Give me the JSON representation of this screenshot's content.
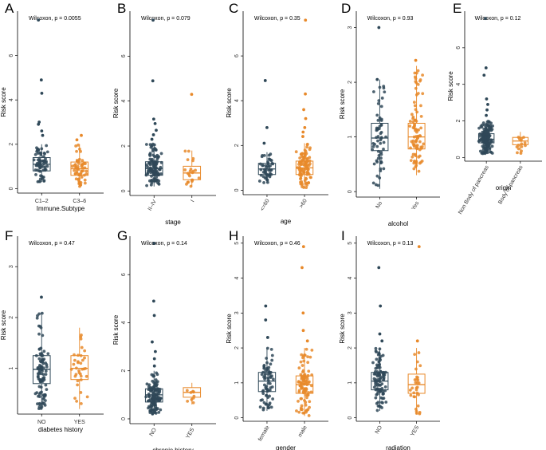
{
  "figure": {
    "description_title": ""
  },
  "colors": {
    "group1": "#2f4858",
    "group2": "#e8892a",
    "axis": "#000000"
  },
  "chart_data": [
    {
      "type": "box",
      "letter": "A",
      "test": "Wilcoxon, p = 0.0055",
      "xlabel": "Immune.Subtype",
      "ylabel": "Risk score",
      "categories": [
        "C1–2",
        "C3–6"
      ],
      "ylim": [
        -0.2,
        8.0
      ],
      "yticks": [
        0,
        2,
        4,
        6
      ],
      "rotate": false,
      "series": [
        {
          "name": "C1–2",
          "q1": 0.8,
          "median": 1.1,
          "q3": 1.4,
          "whisker_low": 0.3,
          "whisker_high": 2.0,
          "n": 70,
          "outliers": [
            2.4,
            2.6,
            2.9,
            3.0,
            4.3,
            4.9,
            7.6
          ]
        },
        {
          "name": "C3–6",
          "q1": 0.6,
          "median": 0.9,
          "q3": 1.2,
          "whisker_low": 0.1,
          "whisker_high": 2.0,
          "n": 60,
          "outliers": [
            2.2,
            2.4
          ]
        }
      ]
    },
    {
      "type": "box",
      "letter": "B",
      "test": "Wilcoxon, p = 0.079",
      "xlabel": "stage",
      "ylabel": "Risk score",
      "categories": [
        "II–IV",
        "I"
      ],
      "ylim": [
        -0.2,
        8.0
      ],
      "yticks": [
        0,
        2,
        4,
        6
      ],
      "rotate": true,
      "series": [
        {
          "name": "II–IV",
          "q1": 0.7,
          "median": 1.0,
          "q3": 1.3,
          "whisker_low": 0.2,
          "whisker_high": 2.1,
          "n": 120,
          "outliers": [
            2.3,
            2.5,
            2.7,
            3.0,
            3.2,
            4.9,
            7.6
          ]
        },
        {
          "name": "I",
          "q1": 0.5,
          "median": 0.8,
          "q3": 1.1,
          "whisker_low": 0.2,
          "whisker_high": 1.8,
          "n": 22,
          "outliers": [
            4.3
          ]
        }
      ]
    },
    {
      "type": "box",
      "letter": "C",
      "test": "Wilcoxon, p = 0.35",
      "xlabel": "age",
      "ylabel": "Risk score",
      "categories": [
        "<=60",
        ">60"
      ],
      "ylim": [
        -0.2,
        8.0
      ],
      "yticks": [
        0,
        2,
        4,
        6
      ],
      "rotate": true,
      "series": [
        {
          "name": "<=60",
          "q1": 0.7,
          "median": 0.95,
          "q3": 1.2,
          "whisker_low": 0.3,
          "whisker_high": 1.7,
          "n": 50,
          "outliers": [
            2.1,
            2.8,
            4.9
          ]
        },
        {
          "name": ">60",
          "q1": 0.7,
          "median": 1.0,
          "q3": 1.3,
          "whisker_low": 0.1,
          "whisker_high": 2.1,
          "n": 100,
          "outliers": [
            2.4,
            2.6,
            2.8,
            3.2,
            3.6,
            4.3,
            7.6
          ]
        }
      ]
    },
    {
      "type": "box",
      "letter": "D",
      "test": "Wilcoxon, p = 0.93",
      "xlabel": "alcohol",
      "ylabel": "Risk score",
      "categories": [
        "No",
        "Yes"
      ],
      "ylim": [
        -0.1,
        3.3
      ],
      "yticks": [
        0,
        1,
        2,
        3
      ],
      "rotate": true,
      "series": [
        {
          "name": "No",
          "q1": 0.75,
          "median": 0.98,
          "q3": 1.25,
          "whisker_low": 0.05,
          "whisker_high": 2.05,
          "n": 60,
          "outliers": [
            2.05,
            3.0
          ]
        },
        {
          "name": "Yes",
          "q1": 0.78,
          "median": 1.0,
          "q3": 1.25,
          "whisker_low": 0.3,
          "whisker_high": 2.3,
          "n": 90,
          "outliers": [
            2.4
          ]
        }
      ]
    },
    {
      "type": "box",
      "letter": "E",
      "test": "Wilcoxon, p = 0.12",
      "xlabel": "origin",
      "ylabel": "Risk score",
      "categories": [
        "Non Body of pancreas",
        "Body of pancreas"
      ],
      "ylim": [
        -0.2,
        8.0
      ],
      "yticks": [
        0,
        2,
        4,
        6
      ],
      "rotate": true,
      "series": [
        {
          "name": "Non Body of pancreas",
          "q1": 0.8,
          "median": 1.0,
          "q3": 1.3,
          "whisker_low": 0.2,
          "whisker_high": 2.0,
          "n": 150,
          "outliers": [
            2.3,
            2.6,
            2.9,
            3.2,
            4.5,
            4.9,
            7.6
          ]
        },
        {
          "name": "Body of pancreas",
          "q1": 0.7,
          "median": 0.9,
          "q3": 1.1,
          "whisker_low": 0.2,
          "whisker_high": 1.4,
          "n": 15,
          "outliers": []
        }
      ]
    },
    {
      "type": "box",
      "letter": "F",
      "test": "Wilcoxon, p = 0.47",
      "xlabel": "diabetes history",
      "ylabel": "Risk score",
      "categories": [
        "NO",
        "YES"
      ],
      "ylim": [
        0.1,
        3.6
      ],
      "yticks": [
        1,
        2,
        3
      ],
      "rotate": false,
      "series": [
        {
          "name": "NO",
          "q1": 0.7,
          "median": 0.98,
          "q3": 1.25,
          "whisker_low": 0.2,
          "whisker_high": 2.1,
          "n": 100,
          "outliers": [
            2.4
          ]
        },
        {
          "name": "YES",
          "q1": 0.78,
          "median": 1.0,
          "q3": 1.25,
          "whisker_low": 0.2,
          "whisker_high": 1.8,
          "n": 35,
          "outliers": []
        }
      ]
    },
    {
      "type": "box",
      "letter": "G",
      "test": "Wilcoxon, p = 0.14",
      "xlabel": "chronic history",
      "ylabel": "Risk score",
      "categories": [
        "NO",
        "YES"
      ],
      "ylim": [
        -0.2,
        7.6
      ],
      "yticks": [
        0,
        2,
        4,
        6
      ],
      "rotate": true,
      "series": [
        {
          "name": "NO",
          "q1": 0.7,
          "median": 1.0,
          "q3": 1.25,
          "whisker_low": 0.2,
          "whisker_high": 2.0,
          "n": 130,
          "outliers": [
            2.2,
            2.5,
            2.8,
            3.2,
            4.3,
            4.9,
            7.3
          ]
        },
        {
          "name": "YES",
          "q1": 0.9,
          "median": 1.1,
          "q3": 1.3,
          "whisker_low": 0.6,
          "whisker_high": 1.5,
          "n": 10,
          "outliers": []
        }
      ]
    },
    {
      "type": "box",
      "letter": "H",
      "test": "Wilcoxon, p = 0.46",
      "xlabel": "gender",
      "ylabel": "Risk score",
      "categories": [
        "female",
        "male"
      ],
      "ylim": [
        -0.1,
        5.2
      ],
      "yticks": [
        0,
        1,
        2,
        3,
        4,
        5
      ],
      "rotate": true,
      "series": [
        {
          "name": "female",
          "q1": 0.75,
          "median": 1.05,
          "q3": 1.3,
          "whisker_low": 0.2,
          "whisker_high": 2.0,
          "n": 70,
          "outliers": [
            2.3,
            2.8,
            3.2
          ]
        },
        {
          "name": "male",
          "q1": 0.7,
          "median": 0.95,
          "q3": 1.2,
          "whisker_low": 0.05,
          "whisker_high": 2.0,
          "n": 95,
          "outliers": [
            2.2,
            2.5,
            3.0,
            4.3,
            4.9
          ]
        }
      ]
    },
    {
      "type": "box",
      "letter": "I",
      "test": "Wilcoxon, p = 0.13",
      "xlabel": "radiation",
      "ylabel": "Risk score",
      "categories": [
        "NO",
        "YES"
      ],
      "ylim": [
        -0.1,
        5.2
      ],
      "yticks": [
        0,
        1,
        2,
        3,
        4,
        5
      ],
      "rotate": true,
      "series": [
        {
          "name": "NO",
          "q1": 0.8,
          "median": 1.05,
          "q3": 1.3,
          "whisker_low": 0.2,
          "whisker_high": 2.0,
          "n": 100,
          "outliers": [
            2.2,
            2.4,
            3.2,
            4.3
          ]
        },
        {
          "name": "YES",
          "q1": 0.7,
          "median": 0.95,
          "q3": 1.25,
          "whisker_low": 0.1,
          "whisker_high": 2.0,
          "n": 30,
          "outliers": [
            2.2,
            4.9
          ]
        }
      ]
    }
  ]
}
